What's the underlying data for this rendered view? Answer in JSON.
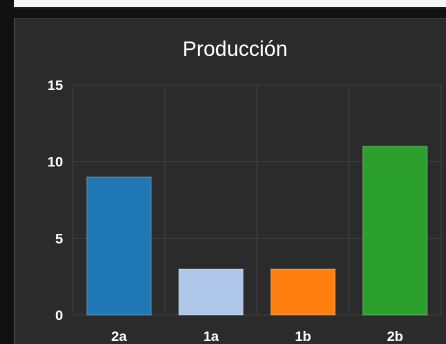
{
  "colors": {
    "page_background": "#111111",
    "panel_background": "#2b2b2b",
    "grid_line": "#3d3d3d",
    "axis_text": "#ffffff",
    "title_text": "#ffffff"
  },
  "chart_data": {
    "type": "bar",
    "title": "Producción",
    "xlabel": "",
    "ylabel": "",
    "categories": [
      "2a",
      "1a",
      "1b",
      "2b"
    ],
    "values": [
      9,
      3,
      3,
      11
    ],
    "bar_colors": [
      "#1f77b4",
      "#aec7e8",
      "#ff7f0e",
      "#2ca02c"
    ],
    "ylim": [
      0,
      15
    ],
    "yticks": [
      0,
      5,
      10,
      15
    ],
    "grid": true,
    "legend": "none"
  }
}
